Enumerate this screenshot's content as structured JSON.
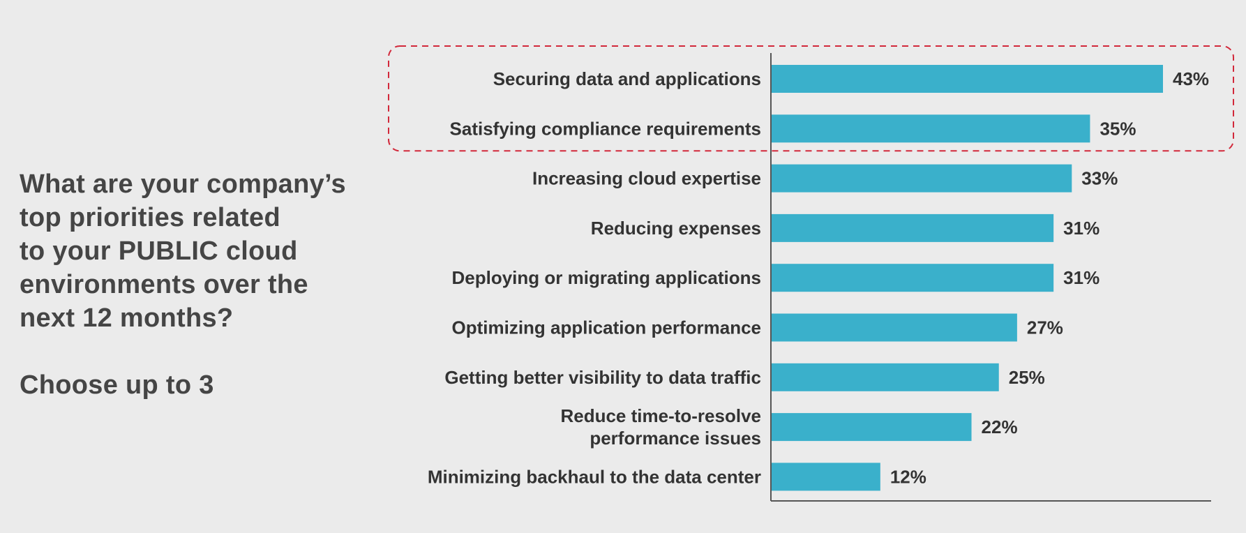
{
  "question": {
    "lines": [
      "What are your company’s",
      "top priorities related",
      "to your PUBLIC cloud",
      "environments over the",
      "next 12 months?"
    ],
    "instruction": "Choose up to 3"
  },
  "colors": {
    "bar": "#3ab0cb",
    "highlight_box": "#d2283a",
    "axis": "#555555",
    "text": "#333333",
    "background": "#ebebeb"
  },
  "chart_data": {
    "type": "bar",
    "orientation": "horizontal",
    "categories": [
      [
        "Securing data and applications"
      ],
      [
        "Satisfying compliance requirements"
      ],
      [
        "Increasing cloud expertise"
      ],
      [
        "Reducing expenses"
      ],
      [
        "Deploying or migrating applications"
      ],
      [
        "Optimizing application performance"
      ],
      [
        "Getting better visibility to data traffic"
      ],
      [
        "Reduce time-to-resolve",
        "performance issues"
      ],
      [
        "Minimizing backhaul to the data center"
      ]
    ],
    "values": [
      43,
      35,
      33,
      31,
      31,
      27,
      25,
      22,
      12
    ],
    "value_labels": [
      "43%",
      "35%",
      "33%",
      "31%",
      "31%",
      "27%",
      "25%",
      "22%",
      "12%"
    ],
    "unit": "%",
    "xlim": [
      0,
      48
    ],
    "highlighted_categories": [
      0,
      1
    ],
    "grid": false,
    "legend": false
  }
}
